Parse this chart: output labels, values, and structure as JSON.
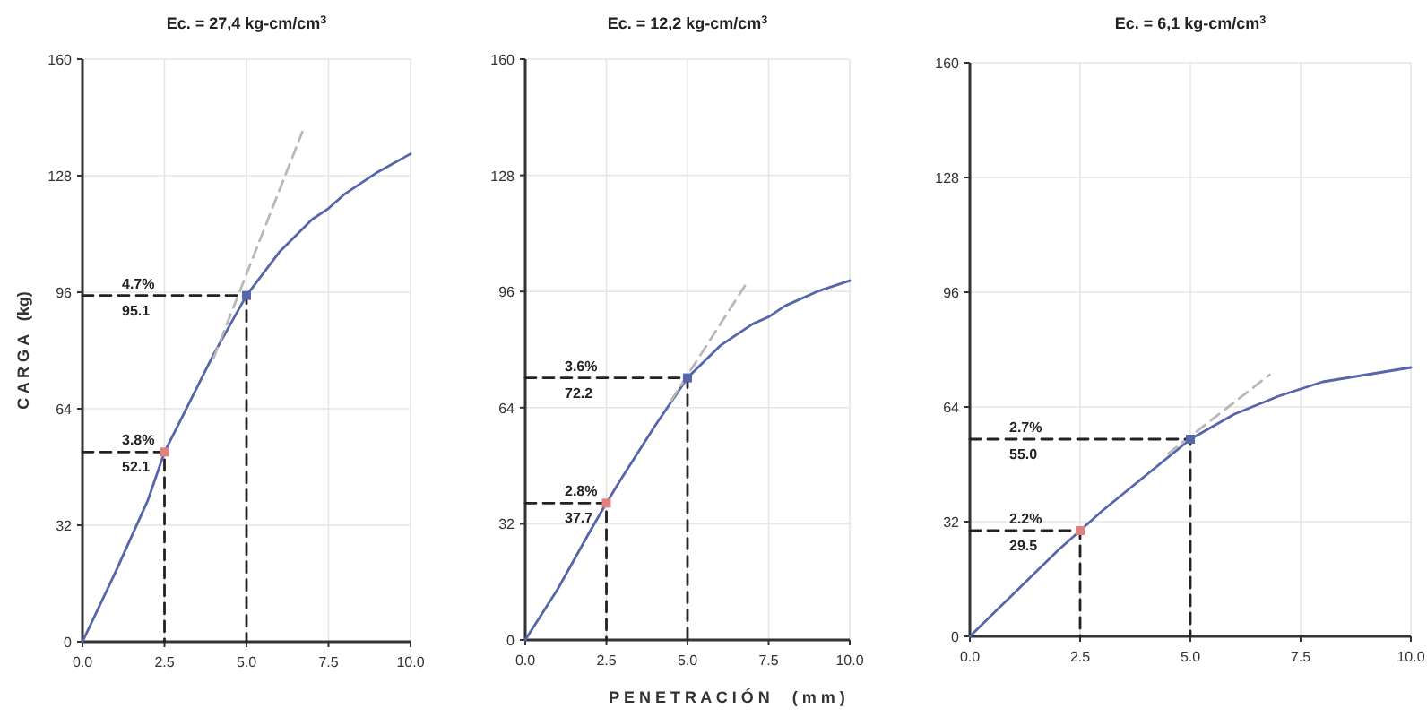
{
  "chart_data": [
    {
      "type": "line",
      "title": "Ec. = 27,4 kg-cm/cm$^{3}$",
      "ylabel": "C A R G A   (kg)",
      "xlim": [
        0,
        10
      ],
      "xticks": [
        {
          "value": 0,
          "label": "0.0"
        },
        {
          "value": 2.5,
          "label": "2.5"
        },
        {
          "value": 5,
          "label": "5.0"
        },
        {
          "value": 7.5,
          "label": "7.5"
        },
        {
          "value": 10,
          "label": "10.0"
        }
      ],
      "ylim": [
        0,
        160
      ],
      "yticks": [
        0,
        32,
        64,
        96,
        128,
        160
      ],
      "grid": true,
      "series": [
        {
          "type": "line",
          "color": "#5566aa",
          "x": [
            0,
            1,
            2,
            2.5,
            3,
            4,
            5,
            6,
            7,
            7.5,
            8,
            9,
            10
          ],
          "values": [
            0,
            19,
            39,
            52.1,
            61,
            79,
            95.1,
            107,
            116,
            119,
            123,
            129,
            134
          ]
        },
        {
          "type": "line",
          "color": "#b8b8b8",
          "line_style": "dashed",
          "x": [
            4,
            6.7
          ],
          "values": [
            78,
            140
          ]
        },
        {
          "type": "line",
          "color": "#222222",
          "line_style": "dashed",
          "x": [
            0,
            2.5,
            2.5
          ],
          "values": [
            52.1,
            52.1,
            0
          ]
        },
        {
          "type": "line",
          "color": "#222222",
          "line_style": "dashed",
          "x": [
            0,
            5,
            5
          ],
          "values": [
            95.1,
            95.1,
            0
          ]
        },
        {
          "type": "scatter",
          "marker": "square",
          "colors": [
            "#e08080",
            "#5566aa"
          ],
          "x": [
            2.5,
            5
          ],
          "values": [
            52.1,
            95.1
          ]
        }
      ],
      "annotations": [
        "3.8%",
        "52.1",
        "4.7%",
        "95.1"
      ]
    },
    {
      "type": "line",
      "title": "Ec. = 12,2 kg-cm/cm$^{3}$",
      "xlabel": "P E N E T R A C I Ó N     ( m m )",
      "xlim": [
        0,
        10
      ],
      "xticks": [
        {
          "value": 0,
          "label": "0.0"
        },
        {
          "value": 2.5,
          "label": "2.5"
        },
        {
          "value": 5,
          "label": "5.0"
        },
        {
          "value": 7.5,
          "label": "7.5"
        },
        {
          "value": 10,
          "label": "10.0"
        }
      ],
      "ylim": [
        0,
        160
      ],
      "yticks": [
        0,
        32,
        64,
        96,
        128,
        160
      ],
      "grid": true,
      "series": [
        {
          "type": "line",
          "color": "#5566aa",
          "x": [
            0,
            1,
            2,
            2.5,
            3,
            4,
            5,
            6,
            7,
            7.5,
            8,
            9,
            10
          ],
          "values": [
            0,
            14,
            30,
            37.7,
            45,
            59,
            72.2,
            81,
            87,
            89,
            92,
            96,
            99
          ]
        },
        {
          "type": "line",
          "color": "#b8b8b8",
          "line_style": "dashed",
          "x": [
            4.5,
            6.8
          ],
          "values": [
            66,
            98
          ]
        },
        {
          "type": "line",
          "color": "#222222",
          "line_style": "dashed",
          "x": [
            0,
            2.5,
            2.5
          ],
          "values": [
            37.7,
            37.7,
            0
          ]
        },
        {
          "type": "line",
          "color": "#222222",
          "line_style": "dashed",
          "x": [
            0,
            5,
            5
          ],
          "values": [
            72.2,
            72.2,
            0
          ]
        },
        {
          "type": "scatter",
          "marker": "square",
          "colors": [
            "#e08080",
            "#5566aa"
          ],
          "x": [
            2.5,
            5
          ],
          "values": [
            37.7,
            72.2
          ]
        }
      ],
      "annotations": [
        "2.8%",
        "37.7",
        "3.6%",
        "72.2"
      ]
    },
    {
      "type": "line",
      "title": "Ec. = 6,1 kg-cm/cm$^{3}$",
      "xlim": [
        0,
        10
      ],
      "xticks": [
        {
          "value": 0,
          "label": "0.0"
        },
        {
          "value": 2.5,
          "label": "2.5"
        },
        {
          "value": 5,
          "label": "5.0"
        },
        {
          "value": 7.5,
          "label": "7.5"
        },
        {
          "value": 10,
          "label": "10.0"
        }
      ],
      "ylim": [
        0,
        160
      ],
      "yticks": [
        0,
        32,
        64,
        96,
        128,
        160
      ],
      "grid": true,
      "series": [
        {
          "type": "line",
          "color": "#5566aa",
          "x": [
            0,
            1,
            2,
            2.5,
            3,
            4,
            5,
            6,
            7,
            7.5,
            8,
            9,
            10
          ],
          "values": [
            0,
            12,
            24,
            29.5,
            35,
            45,
            55,
            62,
            67,
            69,
            71,
            73,
            75
          ]
        },
        {
          "type": "line",
          "color": "#b8b8b8",
          "line_style": "dashed",
          "x": [
            4.5,
            6.8
          ],
          "values": [
            51,
            73
          ]
        },
        {
          "type": "line",
          "color": "#222222",
          "line_style": "dashed",
          "x": [
            0,
            2.5,
            2.5
          ],
          "values": [
            29.5,
            29.5,
            0
          ]
        },
        {
          "type": "line",
          "color": "#222222",
          "line_style": "dashed",
          "x": [
            0,
            5,
            5
          ],
          "values": [
            55,
            55,
            0
          ]
        },
        {
          "type": "scatter",
          "marker": "square",
          "colors": [
            "#e08080",
            "#5566aa"
          ],
          "x": [
            2.5,
            5
          ],
          "values": [
            29.5,
            55
          ]
        }
      ],
      "annotations": [
        "2.2%",
        "29.5",
        "2.7%",
        "55.0"
      ]
    }
  ]
}
